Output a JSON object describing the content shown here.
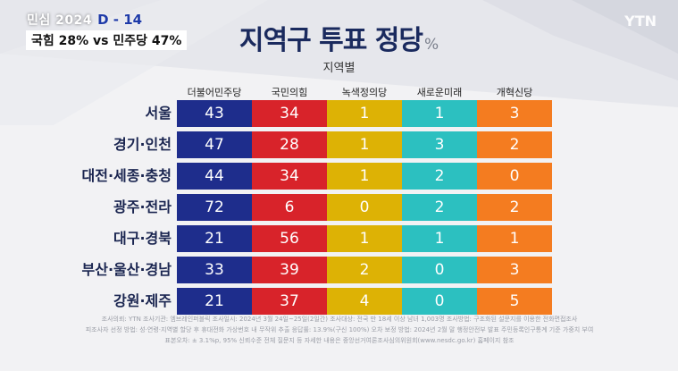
{
  "badge": {
    "program": "민심 2024",
    "dday": "D - 14"
  },
  "headline": "국힘 28% vs 민주당 47%",
  "logo": "YTN",
  "title": {
    "main": "지역구 투표 정당",
    "unit": "%"
  },
  "subtitle": "지역별",
  "chart_data": {
    "type": "table",
    "title": "지역구 투표 정당",
    "subtitle": "지역별",
    "unit": "%",
    "columns": [
      "더불어민주당",
      "국민의힘",
      "녹색정의당",
      "새로운미래",
      "개혁신당"
    ],
    "rows": [
      {
        "label": "서울",
        "values": [
          43,
          34,
          1,
          1,
          3
        ]
      },
      {
        "label": "경기·인천",
        "values": [
          47,
          28,
          1,
          3,
          2
        ]
      },
      {
        "label": "대전·세종·충청",
        "values": [
          44,
          34,
          1,
          2,
          0
        ]
      },
      {
        "label": "광주·전라",
        "values": [
          72,
          6,
          0,
          2,
          2
        ]
      },
      {
        "label": "대구·경북",
        "values": [
          21,
          56,
          1,
          1,
          1
        ]
      },
      {
        "label": "부산·울산·경남",
        "values": [
          33,
          39,
          2,
          0,
          3
        ]
      },
      {
        "label": "강원·제주",
        "values": [
          21,
          37,
          4,
          0,
          5
        ]
      }
    ],
    "column_colors": [
      "#1e2d8c",
      "#d8232a",
      "#ddb205",
      "#2cc0c0",
      "#f47c20"
    ]
  },
  "footer": [
    "조사의뢰: YTN     조사기관: 엠브레인퍼블릭     조사일시: 2024년 3월 24일~25일(2일간)     조사대상: 전국 만 18세 이상 남녀 1,003명     조사방법: 구조화된 설문지를 이용한 전화면접조사",
    "피조사자 선정 방법: 성·연령·지역별 할당 후 휴대전화 가상번호 내 무작위 추출     응답률: 13.9%(구신 100%)     오차 보정 방법: 2024년 2월 말 행정안전부 발표 주민등록인구통계 기준 가중치 부여",
    "표본오차: ± 3.1%p, 95% 신뢰수준     전체 질문지 등 자세한 내용은 중앙선거여론조사심의위원회(www.nesdc.go.kr) 홈페이지 참조"
  ]
}
